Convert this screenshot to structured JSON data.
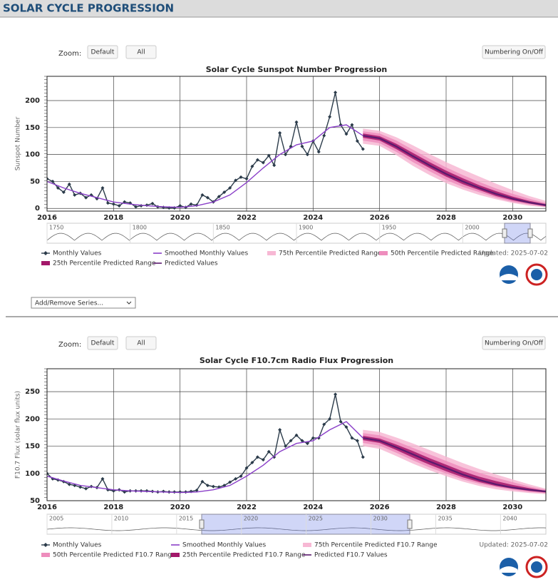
{
  "header": {
    "title": "SOLAR CYCLE PROGRESSION"
  },
  "controls": {
    "zoom_label": "Zoom:",
    "default_button": "Default",
    "all_button": "All",
    "numbering_button": "Numbering On/Off",
    "series_select": "Add/Remove Series..."
  },
  "chart_data": [
    {
      "type": "line",
      "title": "Solar Cycle Sunspot Number Progression",
      "y_label": "Sunspot Number",
      "updated": "Updated: 2025-07-02",
      "grid": true,
      "xlim": [
        2016,
        2031
      ],
      "xticks": [
        2016,
        2018,
        2020,
        2022,
        2024,
        2026,
        2028,
        2030
      ],
      "ylim": [
        -5,
        245
      ],
      "yticks": [
        0,
        50,
        100,
        150,
        200
      ],
      "navigator_labels": [
        "1750",
        "1800",
        "1850",
        "1900",
        "1950",
        "2000"
      ],
      "series": [
        {
          "name": "Monthly Values",
          "style": "markers",
          "color": "#2b3b4a",
          "x": [
            2016,
            2016.17,
            2016.33,
            2016.5,
            2016.67,
            2016.83,
            2017,
            2017.17,
            2017.33,
            2017.5,
            2017.67,
            2017.83,
            2018,
            2018.17,
            2018.33,
            2018.5,
            2018.67,
            2018.83,
            2019,
            2019.17,
            2019.33,
            2019.5,
            2019.67,
            2019.83,
            2020,
            2020.17,
            2020.33,
            2020.5,
            2020.67,
            2020.83,
            2021,
            2021.17,
            2021.33,
            2021.5,
            2021.67,
            2021.83,
            2022,
            2022.17,
            2022.33,
            2022.5,
            2022.67,
            2022.83,
            2023,
            2023.17,
            2023.33,
            2023.5,
            2023.67,
            2023.83,
            2024,
            2024.17,
            2024.33,
            2024.5,
            2024.67,
            2024.83,
            2025,
            2025.17,
            2025.33,
            2025.5
          ],
          "values": [
            55,
            50,
            38,
            30,
            45,
            25,
            28,
            20,
            25,
            18,
            38,
            10,
            8,
            5,
            12,
            10,
            3,
            5,
            6,
            9,
            3,
            2,
            1,
            1,
            5,
            2,
            8,
            6,
            25,
            20,
            12,
            22,
            30,
            38,
            52,
            58,
            55,
            78,
            90,
            85,
            98,
            80,
            140,
            100,
            115,
            160,
            115,
            100,
            125,
            105,
            135,
            170,
            215,
            155,
            138,
            155,
            125,
            110
          ]
        },
        {
          "name": "Smoothed Monthly Values",
          "style": "line",
          "color": "#8a3fc8",
          "x": [
            2016,
            2016.5,
            2017,
            2017.5,
            2018,
            2018.5,
            2019,
            2019.5,
            2020,
            2020.5,
            2021,
            2021.5,
            2022,
            2022.5,
            2023,
            2023.5,
            2024,
            2024.5,
            2025,
            2025.5
          ],
          "values": [
            50,
            38,
            28,
            20,
            12,
            8,
            5,
            3,
            2,
            5,
            12,
            25,
            48,
            75,
            100,
            118,
            125,
            150,
            155,
            135
          ]
        },
        {
          "name": "75th Percentile Predicted Range",
          "style": "band",
          "color": "#f7b8d4",
          "x": [
            2025.5,
            2026,
            2026.5,
            2027,
            2027.5,
            2028,
            2028.5,
            2029,
            2029.5,
            2030,
            2030.5,
            2031
          ],
          "low": [
            120,
            116,
            99,
            79,
            62,
            47,
            35,
            25,
            17,
            10,
            5,
            2
          ],
          "high": [
            148,
            144,
            132,
            117,
            101,
            86,
            72,
            59,
            46,
            34,
            23,
            14
          ]
        },
        {
          "name": "50th Percentile Predicted Range",
          "style": "band",
          "color": "#ee8dbd",
          "x": [
            2025.5,
            2026,
            2026.5,
            2027,
            2027.5,
            2028,
            2028.5,
            2029,
            2029.5,
            2030,
            2030.5,
            2031
          ],
          "low": [
            126,
            121,
            105,
            86,
            69,
            53,
            40,
            30,
            20,
            12,
            7,
            3
          ],
          "high": [
            143,
            139,
            126,
            109,
            92,
            76,
            62,
            49,
            37,
            27,
            18,
            10
          ]
        },
        {
          "name": "25th Percentile Predicted Range",
          "style": "band",
          "color": "#a3186a",
          "x": [
            2025.5,
            2026,
            2026.5,
            2027,
            2027.5,
            2028,
            2028.5,
            2029,
            2029.5,
            2030,
            2030.5,
            2031
          ],
          "low": [
            131,
            126,
            110,
            92,
            75,
            59,
            45,
            34,
            23,
            15,
            9,
            4
          ],
          "high": [
            139,
            134,
            120,
            103,
            86,
            70,
            56,
            43,
            32,
            22,
            14,
            8
          ]
        },
        {
          "name": "Predicted Values",
          "style": "line",
          "color": "#5b1a6e",
          "x": [
            2025.5,
            2026,
            2026.5,
            2027,
            2027.5,
            2028,
            2028.5,
            2029,
            2029.5,
            2030,
            2030.5,
            2031
          ],
          "values": [
            135,
            130,
            115,
            97,
            80,
            64,
            50,
            38,
            27,
            18,
            11,
            6
          ]
        }
      ]
    },
    {
      "type": "line",
      "title": "Solar Cycle F10.7cm Radio Flux Progression",
      "y_label": "F10.7 Flux (solar flux units)",
      "updated": "Updated: 2025-07-02",
      "grid": true,
      "xlim": [
        2016,
        2031
      ],
      "xticks": [
        2016,
        2018,
        2020,
        2022,
        2024,
        2026,
        2028,
        2030
      ],
      "ylim": [
        50,
        292
      ],
      "yticks": [
        50,
        100,
        150,
        200,
        250
      ],
      "navigator_labels": [
        "2005",
        "2010",
        "2015",
        "2020",
        "2025",
        "2030",
        "2035",
        "2040"
      ],
      "series": [
        {
          "name": "Monthly Values",
          "style": "markers",
          "color": "#2b3b4a",
          "x": [
            2016,
            2016.17,
            2016.33,
            2016.5,
            2016.67,
            2016.83,
            2017,
            2017.17,
            2017.33,
            2017.5,
            2017.67,
            2017.83,
            2018,
            2018.17,
            2018.33,
            2018.5,
            2018.67,
            2018.83,
            2019,
            2019.17,
            2019.33,
            2019.5,
            2019.67,
            2019.83,
            2020,
            2020.17,
            2020.33,
            2020.5,
            2020.67,
            2020.83,
            2021,
            2021.17,
            2021.33,
            2021.5,
            2021.67,
            2021.83,
            2022,
            2022.17,
            2022.33,
            2022.5,
            2022.67,
            2022.83,
            2023,
            2023.17,
            2023.33,
            2023.5,
            2023.67,
            2023.83,
            2024,
            2024.17,
            2024.33,
            2024.5,
            2024.67,
            2024.83,
            2025,
            2025.17,
            2025.33,
            2025.5
          ],
          "values": [
            100,
            90,
            88,
            85,
            80,
            78,
            75,
            72,
            76,
            74,
            90,
            70,
            68,
            70,
            66,
            68,
            68,
            68,
            68,
            67,
            66,
            67,
            66,
            66,
            66,
            66,
            67,
            69,
            85,
            78,
            76,
            75,
            78,
            84,
            90,
            95,
            110,
            120,
            130,
            125,
            140,
            130,
            180,
            150,
            160,
            170,
            160,
            155,
            165,
            165,
            190,
            200,
            245,
            195,
            185,
            165,
            160,
            130
          ]
        },
        {
          "name": "Smoothed Monthly Values",
          "style": "line",
          "color": "#8a3fc8",
          "x": [
            2016,
            2016.5,
            2017,
            2017.5,
            2018,
            2018.5,
            2019,
            2019.5,
            2020,
            2020.5,
            2021,
            2021.5,
            2022,
            2022.5,
            2023,
            2023.5,
            2024,
            2024.5,
            2025,
            2025.5
          ],
          "values": [
            95,
            86,
            78,
            74,
            70,
            68,
            67,
            66,
            65,
            66,
            70,
            78,
            95,
            115,
            140,
            155,
            160,
            180,
            195,
            165
          ]
        },
        {
          "name": "75th Percentile Predicted F10.7 Range",
          "style": "band",
          "color": "#f7b8d4",
          "x": [
            2025.5,
            2026,
            2026.5,
            2027,
            2027.5,
            2028,
            2028.5,
            2029,
            2029.5,
            2030,
            2030.5,
            2031
          ],
          "low": [
            150,
            145,
            132,
            118,
            106,
            95,
            85,
            77,
            71,
            67,
            64,
            62
          ],
          "high": [
            180,
            176,
            166,
            155,
            143,
            131,
            119,
            108,
            98,
            89,
            80,
            72
          ]
        },
        {
          "name": "50th Percentile Predicted F10.7 Range",
          "style": "band",
          "color": "#ee8dbd",
          "x": [
            2025.5,
            2026,
            2026.5,
            2027,
            2027.5,
            2028,
            2028.5,
            2029,
            2029.5,
            2030,
            2030.5,
            2031
          ],
          "low": [
            156,
            151,
            138,
            124,
            111,
            100,
            89,
            81,
            75,
            70,
            66,
            64
          ],
          "high": [
            174,
            170,
            159,
            147,
            135,
            123,
            111,
            101,
            92,
            84,
            76,
            70
          ]
        },
        {
          "name": "25th Percentile Predicted F10.7 Range",
          "style": "band",
          "color": "#a3186a",
          "x": [
            2025.5,
            2026,
            2026.5,
            2027,
            2027.5,
            2028,
            2028.5,
            2029,
            2029.5,
            2030,
            2030.5,
            2031
          ],
          "low": [
            161,
            156,
            143,
            129,
            116,
            104,
            93,
            84,
            77,
            72,
            68,
            65
          ],
          "high": [
            169,
            164,
            153,
            141,
            128,
            116,
            104,
            94,
            86,
            79,
            73,
            68
          ]
        },
        {
          "name": "Predicted F10.7 Values",
          "style": "line",
          "color": "#5b1a6e",
          "x": [
            2025.5,
            2026,
            2026.5,
            2027,
            2027.5,
            2028,
            2028.5,
            2029,
            2029.5,
            2030,
            2030.5,
            2031
          ],
          "values": [
            165,
            160,
            148,
            135,
            122,
            110,
            98,
            88,
            80,
            74,
            70,
            67
          ]
        }
      ]
    }
  ]
}
